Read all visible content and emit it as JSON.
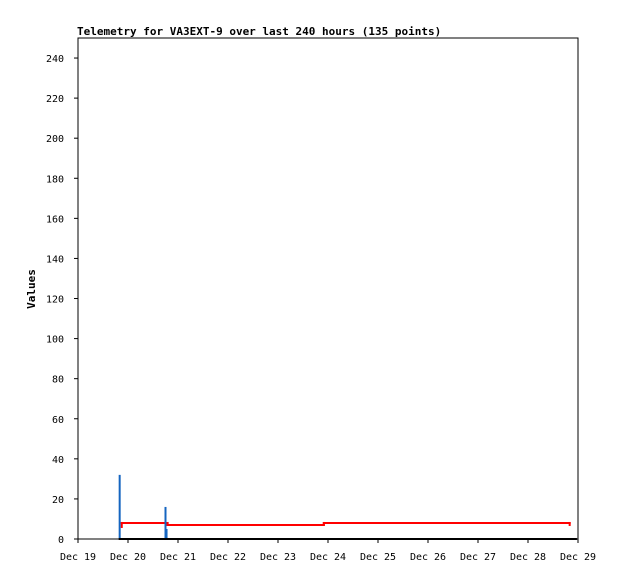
{
  "chart_data": {
    "type": "line",
    "title": "Telemetry for VA3EXT-9 over last 240 hours (135 points)",
    "xlabel": "",
    "ylabel": "Values",
    "xlim": [
      "Dec 19",
      "Dec 29"
    ],
    "ylim": [
      0,
      250
    ],
    "grid": false,
    "legend": "none",
    "x_ticks": [
      "Dec 19",
      "Dec 20",
      "Dec 21",
      "Dec 22",
      "Dec 23",
      "Dec 24",
      "Dec 25",
      "Dec 26",
      "Dec 27",
      "Dec 28",
      "Dec 29"
    ],
    "y_ticks": [
      0,
      20,
      40,
      60,
      80,
      100,
      120,
      140,
      160,
      180,
      200,
      220,
      240
    ],
    "series": [
      {
        "color": "#ff0000",
        "style": "step",
        "points": [
          {
            "x": "Dec 19 21:00",
            "y": 6
          },
          {
            "x": "Dec 19 21:00",
            "y": 8
          },
          {
            "x": "Dec 20 19:00",
            "y": 8
          },
          {
            "x": "Dec 20 19:00",
            "y": 7
          },
          {
            "x": "Dec 23 22:00",
            "y": 7
          },
          {
            "x": "Dec 23 22:00",
            "y": 8
          },
          {
            "x": "Dec 28 20:00",
            "y": 8
          },
          {
            "x": "Dec 28 20:00",
            "y": 7
          }
        ]
      },
      {
        "color": "#1565c0",
        "style": "spike",
        "points": [
          {
            "x": "Dec 19 20:00",
            "y": 32
          },
          {
            "x": "Dec 20 18:00",
            "y": 16
          },
          {
            "x": "Dec 20 18:30",
            "y": 5
          }
        ]
      },
      {
        "color": "#000000",
        "style": "line",
        "points": [
          {
            "x": "Dec 19 20:00",
            "y": 0
          },
          {
            "x": "Dec 28 23:00",
            "y": 0
          }
        ]
      }
    ]
  }
}
